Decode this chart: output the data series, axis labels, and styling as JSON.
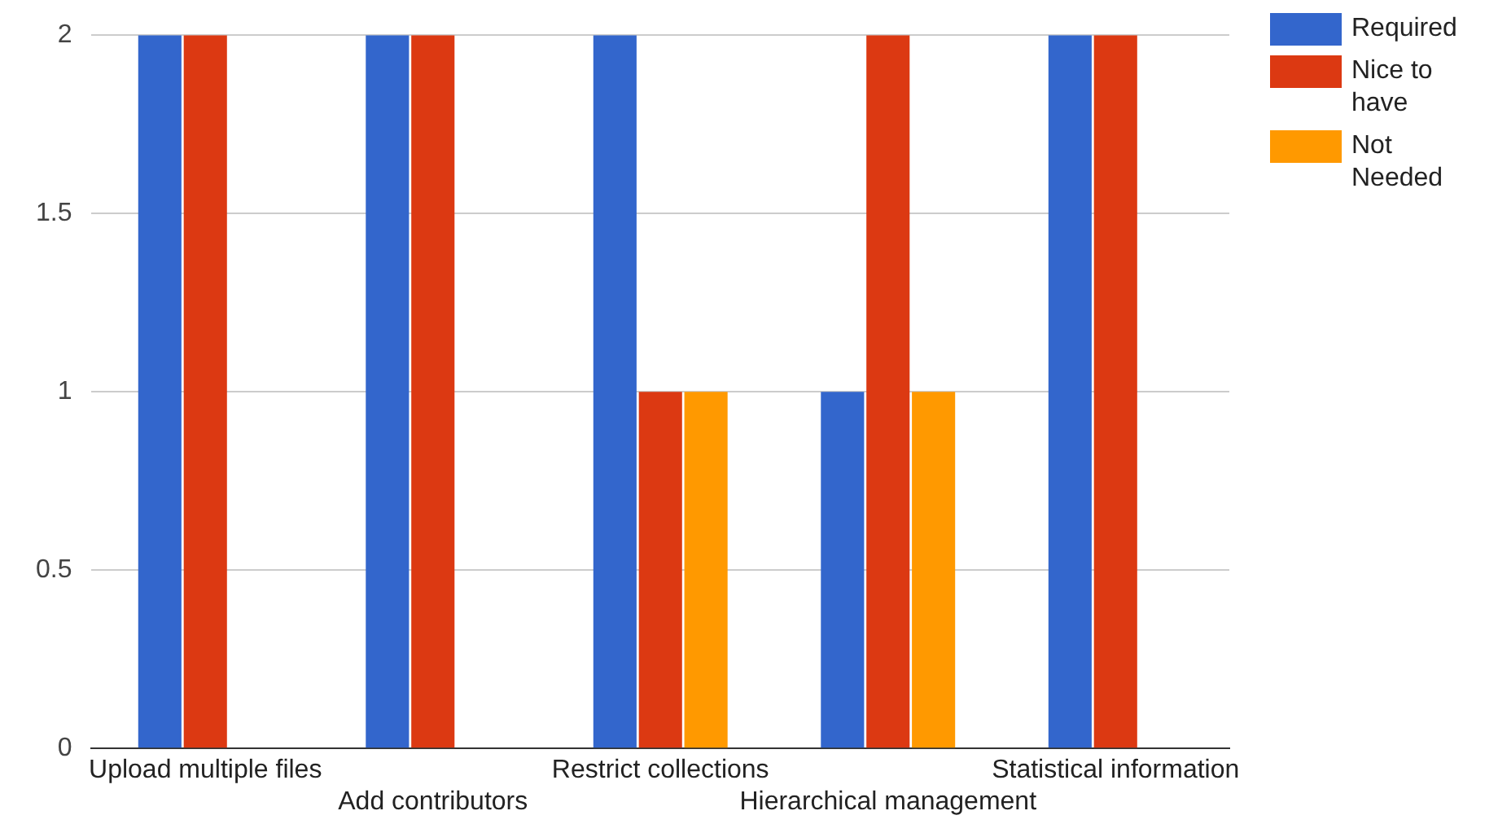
{
  "chart_data": {
    "type": "bar",
    "categories": [
      "Upload multiple files",
      "Add contributors",
      "Restrict collections",
      "Hierarchical management",
      "Statistical information"
    ],
    "series": [
      {
        "name": "Required",
        "color": "#3366cc",
        "values": [
          2,
          2,
          2,
          1,
          2
        ]
      },
      {
        "name": "Nice to have",
        "color": "#dc3912",
        "values": [
          2,
          2,
          1,
          2,
          2
        ]
      },
      {
        "name": "Not Needed",
        "color": "#ff9900",
        "values": [
          0,
          0,
          1,
          1,
          0
        ]
      }
    ],
    "ylim": [
      0,
      2
    ],
    "yticks": [
      0,
      0.5,
      1,
      1.5,
      2
    ],
    "grid": "y",
    "legend": "right"
  }
}
